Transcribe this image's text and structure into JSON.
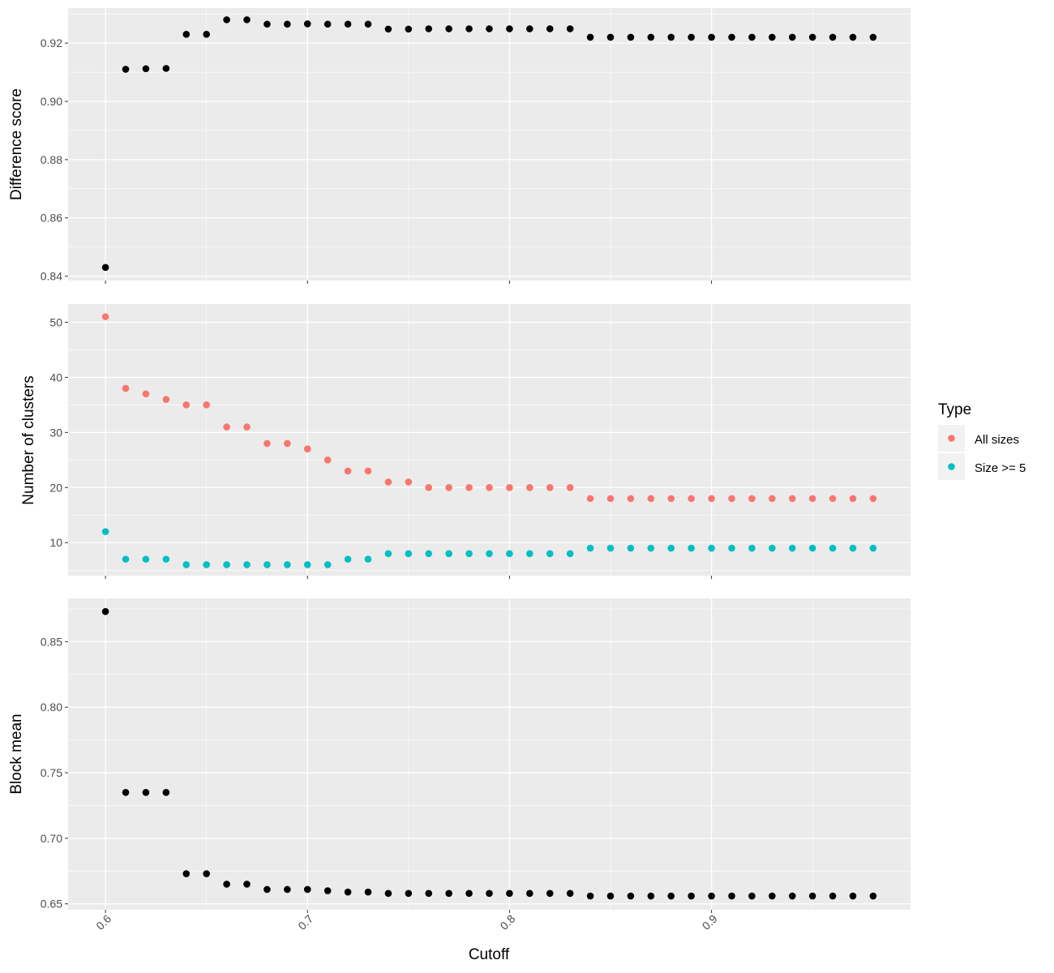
{
  "chart_data": [
    {
      "type": "scatter",
      "panel": "top",
      "ylabel": "Difference score",
      "ylim": [
        0.8385,
        0.932
      ],
      "yticks": [
        0.84,
        0.86,
        0.88,
        0.9,
        0.92
      ],
      "ytick_labels": [
        "0.84",
        "0.86",
        "0.88",
        "0.90",
        "0.92"
      ],
      "grid": true,
      "series": [
        {
          "color": "#000000",
          "x": [
            0.6,
            0.61,
            0.62,
            0.63,
            0.64,
            0.65,
            0.66,
            0.67,
            0.68,
            0.69,
            0.7,
            0.71,
            0.72,
            0.73,
            0.74,
            0.75,
            0.76,
            0.77,
            0.78,
            0.79,
            0.8,
            0.81,
            0.82,
            0.83,
            0.84,
            0.85,
            0.86,
            0.87,
            0.88,
            0.89,
            0.9,
            0.91,
            0.92,
            0.93,
            0.94,
            0.95,
            0.96,
            0.97,
            0.98
          ],
          "y": [
            0.843,
            0.911,
            0.9112,
            0.9113,
            0.923,
            0.923,
            0.928,
            0.928,
            0.9265,
            0.9265,
            0.9266,
            0.9265,
            0.9265,
            0.9265,
            0.9248,
            0.9248,
            0.9249,
            0.9249,
            0.9249,
            0.9249,
            0.9249,
            0.9249,
            0.9249,
            0.9249,
            0.922,
            0.922,
            0.922,
            0.922,
            0.922,
            0.922,
            0.922,
            0.922,
            0.922,
            0.922,
            0.922,
            0.922,
            0.922,
            0.922,
            0.922
          ]
        }
      ]
    },
    {
      "type": "scatter",
      "panel": "middle",
      "ylabel": "Number of clusters",
      "ylim": [
        4.0,
        53.3
      ],
      "yticks": [
        10,
        20,
        30,
        40,
        50
      ],
      "ytick_labels": [
        "10",
        "20",
        "30",
        "40",
        "50"
      ],
      "grid": true,
      "legend": {
        "title": "Type",
        "position": "right"
      },
      "series": [
        {
          "name": "All sizes",
          "color": "#F8766D",
          "x": [
            0.6,
            0.61,
            0.62,
            0.63,
            0.64,
            0.65,
            0.66,
            0.67,
            0.68,
            0.69,
            0.7,
            0.71,
            0.72,
            0.73,
            0.74,
            0.75,
            0.76,
            0.77,
            0.78,
            0.79,
            0.8,
            0.81,
            0.82,
            0.83,
            0.84,
            0.85,
            0.86,
            0.87,
            0.88,
            0.89,
            0.9,
            0.91,
            0.92,
            0.93,
            0.94,
            0.95,
            0.96,
            0.97,
            0.98
          ],
          "y": [
            51,
            38,
            37,
            36,
            35,
            35,
            31,
            31,
            28,
            28,
            27,
            25,
            23,
            23,
            21,
            21,
            20,
            20,
            20,
            20,
            20,
            20,
            20,
            20,
            18,
            18,
            18,
            18,
            18,
            18,
            18,
            18,
            18,
            18,
            18,
            18,
            18,
            18,
            18
          ]
        },
        {
          "name": "Size >= 5",
          "color": "#00BFC4",
          "x": [
            0.6,
            0.61,
            0.62,
            0.63,
            0.64,
            0.65,
            0.66,
            0.67,
            0.68,
            0.69,
            0.7,
            0.71,
            0.72,
            0.73,
            0.74,
            0.75,
            0.76,
            0.77,
            0.78,
            0.79,
            0.8,
            0.81,
            0.82,
            0.83,
            0.84,
            0.85,
            0.86,
            0.87,
            0.88,
            0.89,
            0.9,
            0.91,
            0.92,
            0.93,
            0.94,
            0.95,
            0.96,
            0.97,
            0.98
          ],
          "y": [
            12,
            7,
            7,
            7,
            6,
            6,
            6,
            6,
            6,
            6,
            6,
            6,
            7,
            7,
            8,
            8,
            8,
            8,
            8,
            8,
            8,
            8,
            8,
            8,
            9,
            9,
            9,
            9,
            9,
            9,
            9,
            9,
            9,
            9,
            9,
            9,
            9,
            9,
            9
          ]
        }
      ]
    },
    {
      "type": "scatter",
      "panel": "bottom",
      "ylabel": "Block mean",
      "xlabel": "Cutoff",
      "ylim": [
        0.6455,
        0.883
      ],
      "yticks": [
        0.65,
        0.7,
        0.75,
        0.8,
        0.85
      ],
      "ytick_labels": [
        "0.65",
        "0.70",
        "0.75",
        "0.80",
        "0.85"
      ],
      "grid": true,
      "series": [
        {
          "color": "#000000",
          "x": [
            0.6,
            0.61,
            0.62,
            0.63,
            0.64,
            0.65,
            0.66,
            0.67,
            0.68,
            0.69,
            0.7,
            0.71,
            0.72,
            0.73,
            0.74,
            0.75,
            0.76,
            0.77,
            0.78,
            0.79,
            0.8,
            0.81,
            0.82,
            0.83,
            0.84,
            0.85,
            0.86,
            0.87,
            0.88,
            0.89,
            0.9,
            0.91,
            0.92,
            0.93,
            0.94,
            0.95,
            0.96,
            0.97,
            0.98
          ],
          "y": [
            0.873,
            0.735,
            0.735,
            0.735,
            0.673,
            0.673,
            0.665,
            0.665,
            0.661,
            0.661,
            0.661,
            0.66,
            0.659,
            0.659,
            0.658,
            0.658,
            0.658,
            0.658,
            0.658,
            0.658,
            0.658,
            0.658,
            0.658,
            0.658,
            0.656,
            0.656,
            0.656,
            0.656,
            0.656,
            0.656,
            0.656,
            0.656,
            0.656,
            0.656,
            0.656,
            0.656,
            0.656,
            0.656,
            0.656
          ]
        }
      ]
    }
  ],
  "x_axis": {
    "xlim": [
      0.5815,
      0.9985
    ],
    "ticks": [
      0.6,
      0.7,
      0.8,
      0.9
    ],
    "tick_labels": [
      "0.6",
      "0.7",
      "0.8",
      "0.9"
    ],
    "label": "Cutoff"
  },
  "colors": {
    "panel_background": "#EBEBEB",
    "grid_major": "#FFFFFF",
    "all_sizes": "#F8766D",
    "size_ge_5": "#00BFC4"
  }
}
